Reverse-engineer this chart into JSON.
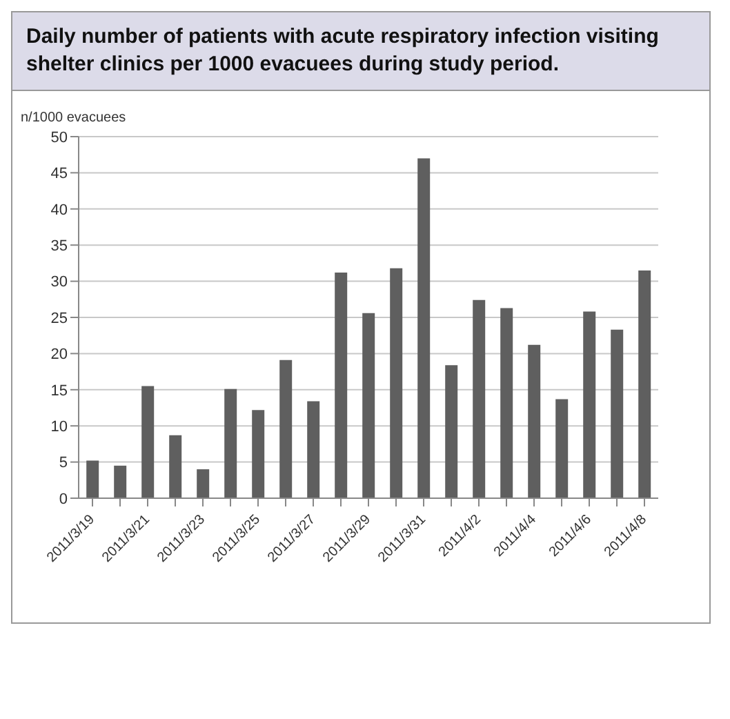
{
  "chart_data": {
    "type": "bar",
    "title": "Daily number of patients with acute respiratory infection visiting shelter clinics per 1000 evacuees during study period.",
    "ylabel": "n/1000 evacuees",
    "categories": [
      "2011/3/19",
      null,
      "2011/3/21",
      null,
      "2011/3/23",
      null,
      "2011/3/25",
      null,
      "2011/3/27",
      null,
      "2011/3/29",
      null,
      "2011/3/31",
      null,
      "2011/4/2",
      null,
      "2011/4/4",
      null,
      "2011/4/6",
      null,
      "2011/4/8"
    ],
    "values": [
      5.2,
      4.5,
      15.5,
      8.7,
      4.0,
      15.1,
      12.2,
      19.1,
      13.4,
      31.2,
      25.6,
      31.8,
      47.0,
      18.4,
      27.4,
      26.3,
      21.2,
      13.7,
      25.8,
      23.3,
      31.5
    ],
    "color": "#5f5f5f",
    "ylim": [
      0,
      50
    ],
    "yticks": [
      0,
      5,
      10,
      15,
      20,
      25,
      30,
      35,
      40,
      45,
      50
    ],
    "grid": "y"
  }
}
